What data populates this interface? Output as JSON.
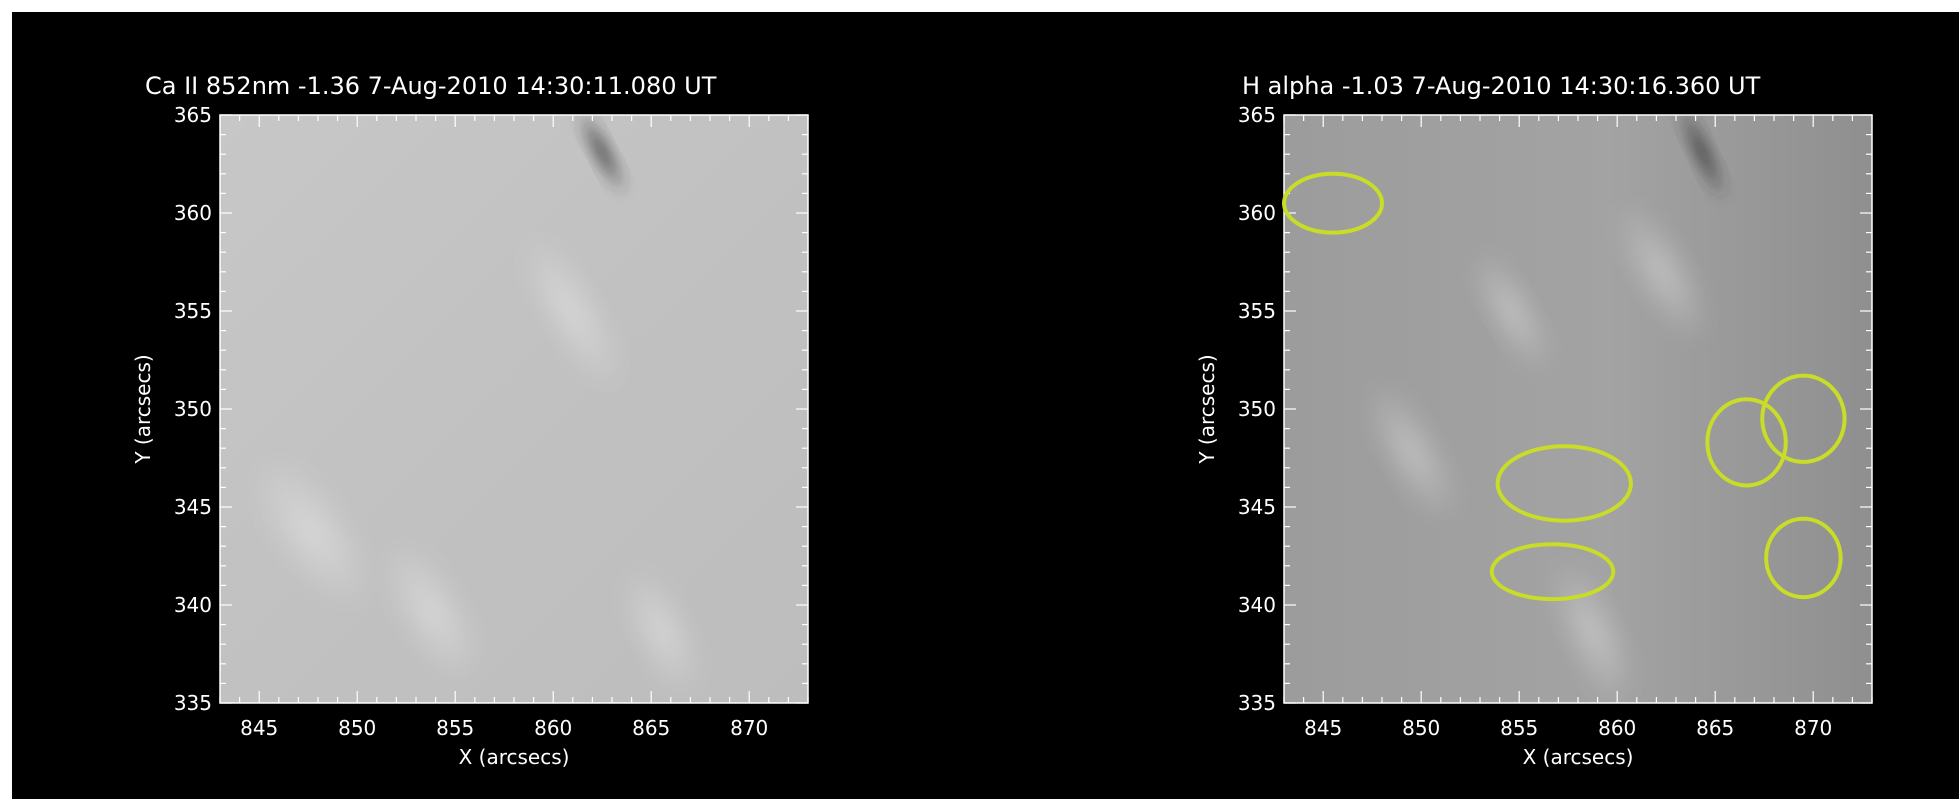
{
  "panels": [
    {
      "title": "Ca II 852nm   -1.36    7-Aug-2010  14:30:11.080  UT",
      "xlabel": "X (arcsecs)",
      "ylabel": "Y (arcsecs)",
      "xlim": [
        843,
        873
      ],
      "ylim": [
        335,
        365
      ],
      "x_ticks": [
        845,
        850,
        855,
        860,
        865,
        870
      ],
      "y_ticks": [
        335,
        340,
        345,
        350,
        355,
        360,
        365
      ],
      "highlight_color": "#c8dc28",
      "highlights": []
    },
    {
      "title": "H alpha   -1.03    7-Aug-2010  14:30:16.360  UT",
      "xlabel": "X (arcsecs)",
      "ylabel": "Y (arcsecs)",
      "xlim": [
        843,
        873
      ],
      "ylim": [
        335,
        365
      ],
      "x_ticks": [
        845,
        850,
        855,
        860,
        865,
        870
      ],
      "y_ticks": [
        335,
        340,
        345,
        350,
        355,
        360,
        365
      ],
      "highlight_color": "#c8dc28",
      "highlights": [
        {
          "x": 845.5,
          "y": 360.5,
          "rx": 2.5,
          "ry": 1.5
        },
        {
          "x": 857.3,
          "y": 346.2,
          "rx": 3.4,
          "ry": 1.9
        },
        {
          "x": 856.7,
          "y": 341.7,
          "rx": 3.1,
          "ry": 1.4
        },
        {
          "x": 866.6,
          "y": 348.3,
          "rx": 2.0,
          "ry": 2.2
        },
        {
          "x": 869.5,
          "y": 349.5,
          "rx": 2.1,
          "ry": 2.2
        },
        {
          "x": 869.5,
          "y": 342.4,
          "rx": 1.9,
          "ry": 2.0
        }
      ]
    }
  ]
}
